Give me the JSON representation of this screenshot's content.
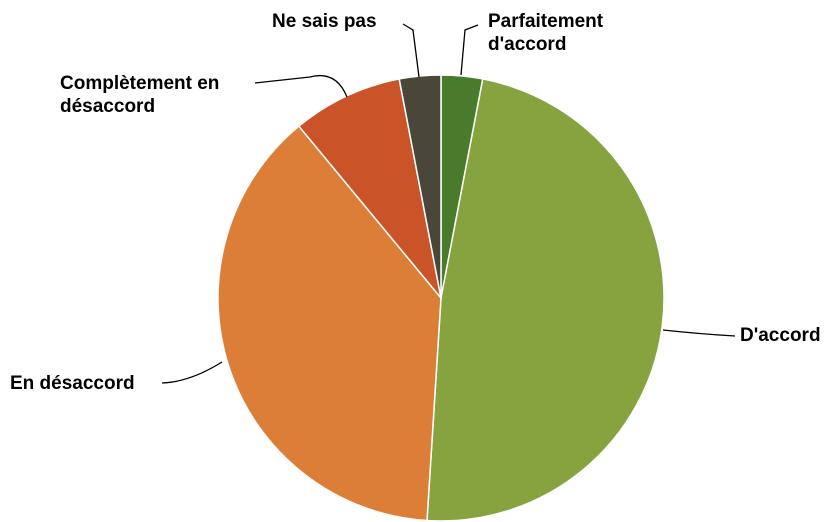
{
  "chart_data": {
    "type": "pie",
    "title": "",
    "slices": [
      {
        "label": "Parfaitement d'accord",
        "label_lines": [
          "Parfaitement",
          "d'accord"
        ],
        "value": 3,
        "color": "#4a7a2c"
      },
      {
        "label": "D'accord",
        "label_lines": [
          "D'accord"
        ],
        "value": 48,
        "color": "#86a33f"
      },
      {
        "label": "En désaccord",
        "label_lines": [
          "En désaccord"
        ],
        "value": 38,
        "color": "#dc7e38"
      },
      {
        "label": "Complètement en désaccord",
        "label_lines": [
          "Complètement en",
          "désaccord"
        ],
        "value": 8,
        "color": "#cb5328"
      },
      {
        "label": "Ne sais pas",
        "label_lines": [
          "Ne sais pas"
        ],
        "value": 3,
        "color": "#4a4639"
      }
    ],
    "start_angle_deg": 0,
    "direction": "clockwise",
    "legend": "none",
    "labels": "outside-with-leader-lines"
  }
}
